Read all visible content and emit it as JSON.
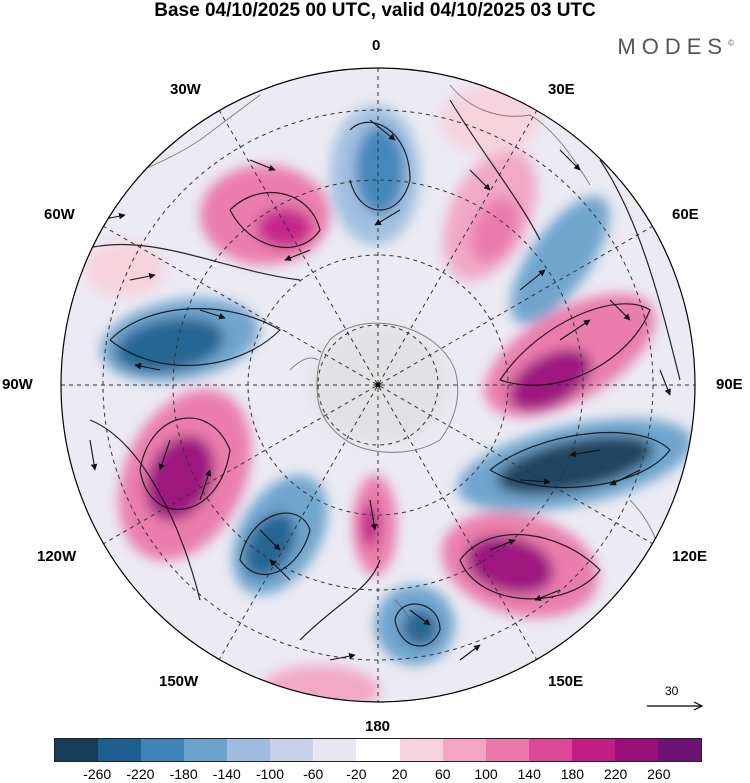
{
  "title": "Base 04/10/2025 00 UTC, valid 04/10/2025 03 UTC",
  "brand": "MODES",
  "brand_mark": "©",
  "longitude_labels": {
    "top": "0",
    "bottom": "180",
    "left": "90W",
    "right": "90E",
    "w30": "30W",
    "e30": "30E",
    "w60": "60W",
    "e60": "60E",
    "w120": "120W",
    "e120": "120E",
    "w150": "150W",
    "e150": "150E"
  },
  "reference_vector": {
    "value": "30"
  },
  "colorbar": {
    "colors": [
      "#173c5a",
      "#1f5f8f",
      "#3e84b9",
      "#6ba2cc",
      "#9fbde0",
      "#c8cfe8",
      "#e7e6f2",
      "#ffffff",
      "#f7d2dc",
      "#f2a6c3",
      "#ea78a8",
      "#dc4895",
      "#c21c85",
      "#9a0e7a",
      "#6b1475"
    ],
    "labels": [
      "-260",
      "-220",
      "-180",
      "-140",
      "-100",
      "-60",
      "-20",
      "20",
      "60",
      "100",
      "140",
      "180",
      "220",
      "260"
    ]
  },
  "icons": {
    "wind-vector-icon": "arrow",
    "reference-arrow-icon": "arrow"
  }
}
